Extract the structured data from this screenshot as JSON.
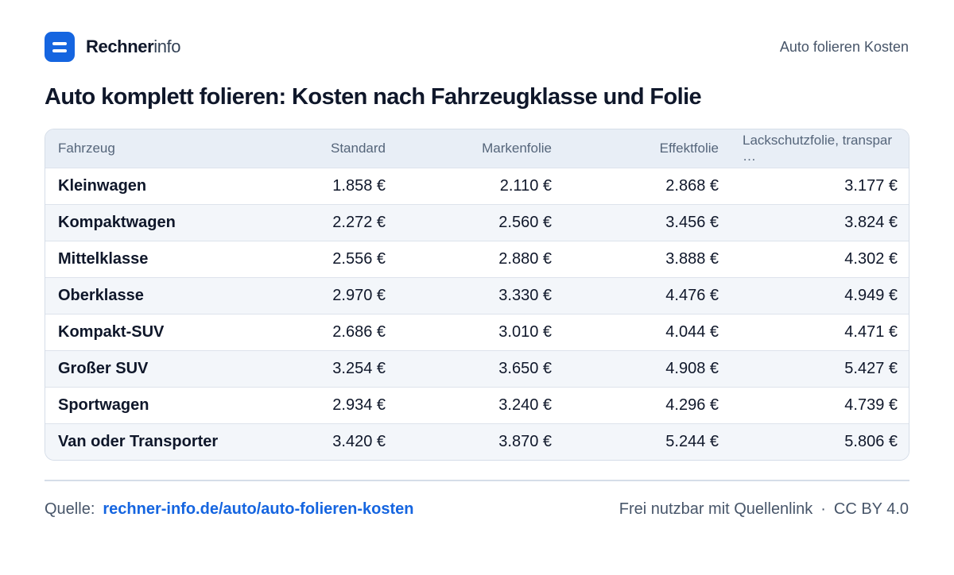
{
  "brand": {
    "name_bold": "Rechner",
    "name_light": "info",
    "icon": "menu-lines-icon",
    "accent": "#1565e0"
  },
  "top_right_text": "Auto folieren Kosten",
  "title": "Auto komplett folieren: Kosten nach Fahrzeugklasse und Folie",
  "table": {
    "columns": [
      "Fahrzeug",
      "Standard",
      "Markenfolie",
      "Effektfolie",
      "Lackschutzfolie, transpar …"
    ],
    "rows": [
      [
        "Kleinwagen",
        "1.858 €",
        "2.110 €",
        "2.868 €",
        "3.177 €"
      ],
      [
        "Kompaktwagen",
        "2.272 €",
        "2.560 €",
        "3.456 €",
        "3.824 €"
      ],
      [
        "Mittelklasse",
        "2.556 €",
        "2.880 €",
        "3.888 €",
        "4.302 €"
      ],
      [
        "Oberklasse",
        "2.970 €",
        "3.330 €",
        "4.476 €",
        "4.949 €"
      ],
      [
        "Kompakt-SUV",
        "2.686 €",
        "3.010 €",
        "4.044 €",
        "4.471 €"
      ],
      [
        "Großer SUV",
        "3.254 €",
        "3.650 €",
        "4.908 €",
        "5.427 €"
      ],
      [
        "Sportwagen",
        "2.934 €",
        "3.240 €",
        "4.296 €",
        "4.739 €"
      ],
      [
        "Van oder Transporter",
        "3.420 €",
        "3.870 €",
        "5.244 €",
        "5.806 €"
      ]
    ]
  },
  "footer": {
    "source_label": "Quelle:",
    "source_link": "rechner-info.de/auto/auto-folieren-kosten",
    "license_text": "Frei nutzbar mit Quellenlink",
    "separator": "·",
    "license_name": "CC BY 4.0"
  }
}
